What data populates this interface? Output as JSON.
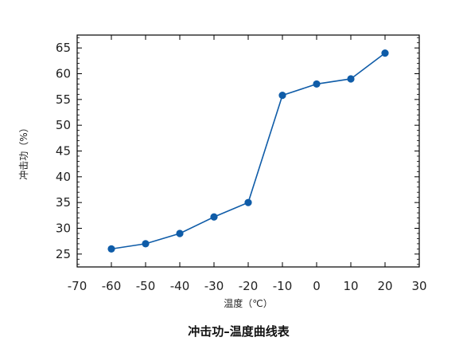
{
  "chart_data": {
    "type": "line",
    "title": "冲击功–温度曲线表",
    "xlabel": "温度（℃）",
    "ylabel": "冲击功（%）",
    "xlim": [
      -70,
      30
    ],
    "ylim": [
      22.5,
      67.5
    ],
    "x_ticks": [
      -70,
      -60,
      -50,
      -40,
      -30,
      -20,
      -10,
      0,
      10,
      20,
      30
    ],
    "y_ticks": [
      25,
      30,
      35,
      40,
      45,
      50,
      55,
      60,
      65
    ],
    "grid": false,
    "series": [
      {
        "x": [
          -60,
          -50,
          -40,
          -30,
          -20,
          -10,
          0,
          10,
          20
        ],
        "values": [
          26.0,
          27.0,
          29.0,
          32.2,
          35.0,
          55.8,
          58.0,
          59.0,
          64.0
        ]
      }
    ]
  },
  "colors": {
    "series": "#0f5ca8",
    "axis": "#000000"
  }
}
